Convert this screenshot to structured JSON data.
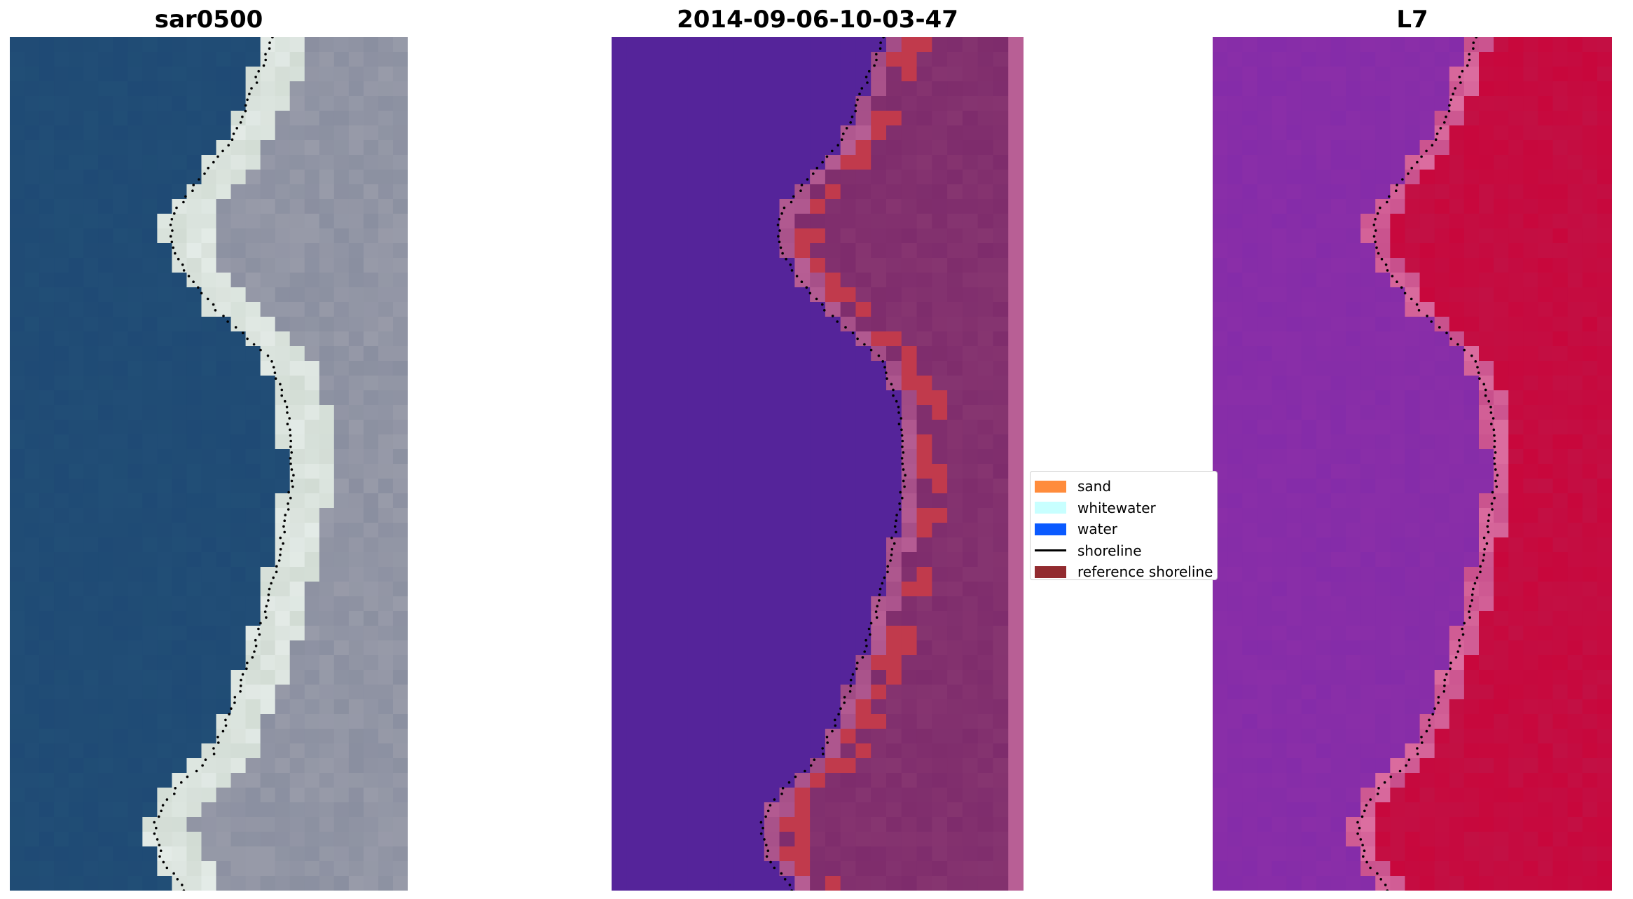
{
  "panels": [
    {
      "id": "p1",
      "title": "sar0500",
      "kind": "rgb"
    },
    {
      "id": "p2",
      "title": "2014-09-06-10-03-47",
      "kind": "classified"
    },
    {
      "id": "p3",
      "title": "L7",
      "kind": "index"
    }
  ],
  "legend": {
    "items": [
      {
        "label": "sand",
        "color": "#ff8c3c",
        "type": "patch"
      },
      {
        "label": "whitewater",
        "color": "#c8ffff",
        "type": "patch"
      },
      {
        "label": "water",
        "color": "#0a5aff",
        "type": "patch"
      },
      {
        "label": "shoreline",
        "color": "#000000",
        "type": "line"
      },
      {
        "label": "reference shoreline",
        "color": "#922b2f",
        "type": "patch"
      }
    ]
  },
  "colors": {
    "rgb_water": "#1f4a75",
    "rgb_land": "#8a8fa0",
    "rgb_beach": "#d2dcd4",
    "class_water": "#55249a",
    "class_land": "#7e2c6c",
    "class_sand_edge": "#c13a4c",
    "class_edge_strip": "#b85f95",
    "index_water": "#8a2ea8",
    "index_land": "#c8073c",
    "shoreline_dots": "#000000"
  }
}
